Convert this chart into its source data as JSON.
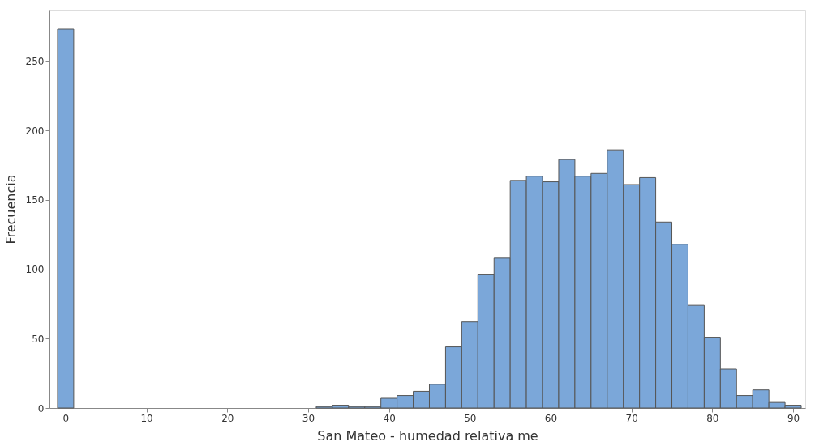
{
  "chart_data": {
    "type": "histogram",
    "xlabel": "San Mateo - humedad relativa me",
    "ylabel": "Frecuencia",
    "bins": [
      -1,
      1,
      3,
      5,
      7,
      9,
      11,
      13,
      15,
      17,
      19,
      21,
      23,
      25,
      27,
      29,
      31,
      33,
      35,
      37,
      39,
      41,
      43,
      45,
      47,
      49,
      51,
      53,
      55,
      57,
      59,
      61,
      63,
      65,
      67,
      69,
      71,
      73,
      75,
      77,
      79,
      81,
      83,
      85,
      87,
      89,
      91
    ],
    "values": [
      273,
      0,
      0,
      0,
      0,
      0,
      0,
      0,
      0,
      0,
      0,
      0,
      0,
      0,
      0,
      0,
      1,
      2,
      1,
      1,
      7,
      9,
      12,
      17,
      44,
      62,
      96,
      108,
      164,
      167,
      163,
      179,
      167,
      169,
      186,
      161,
      166,
      134,
      118,
      74,
      51,
      28,
      9,
      13,
      4,
      2
    ],
    "color": "#7ba7d9",
    "xlim": [
      -2,
      91.5
    ],
    "ylim": [
      0,
      287
    ],
    "xticks": [
      0,
      10,
      20,
      30,
      40,
      50,
      60,
      70,
      80,
      90
    ],
    "yticks": [
      0,
      50,
      100,
      150,
      200,
      250
    ],
    "grid": false
  }
}
